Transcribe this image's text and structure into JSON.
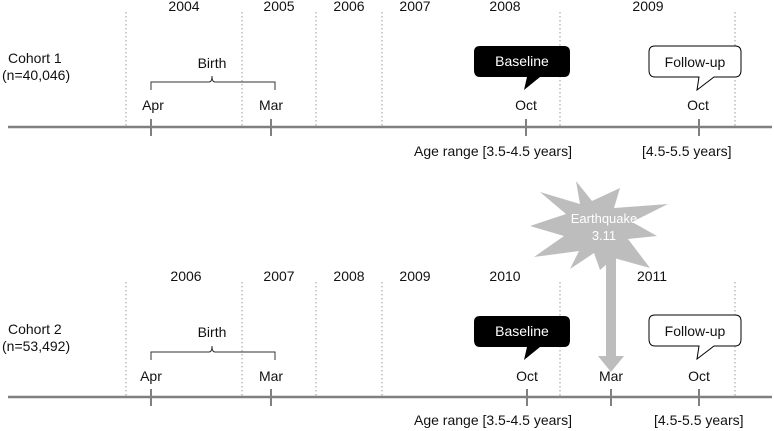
{
  "cohort1": {
    "name": "Cohort 1",
    "n": "(n=40,046)",
    "years": [
      "2004",
      "2005",
      "2006",
      "2007",
      "2008",
      "2009"
    ],
    "birth_label": "Birth",
    "birth_start": "Apr",
    "birth_end": "Mar",
    "baseline_label": "Baseline",
    "baseline_month": "Oct",
    "followup_label": "Follow-up",
    "followup_month": "Oct",
    "age_range_baseline": "Age range [3.5-4.5 years]",
    "age_range_followup": "[4.5-5.5 years]"
  },
  "cohort2": {
    "name": "Cohort 2",
    "n": "(n=53,492)",
    "years": [
      "2006",
      "2007",
      "2008",
      "2009",
      "2010",
      "2011"
    ],
    "birth_label": "Birth",
    "birth_start": "Apr",
    "birth_end": "Mar",
    "baseline_label": "Baseline",
    "baseline_month": "Oct",
    "event_month": "Mar",
    "followup_label": "Follow-up",
    "followup_month": "Oct",
    "age_range_baseline": "Age range [3.5-4.5 years]",
    "age_range_followup": "[4.5-5.5 years]"
  },
  "earthquake": {
    "line1": "Earthquake",
    "line2": "3.11"
  },
  "colors": {
    "axis": "#808080",
    "divider": "#9a9a9a",
    "callout_dark": "#000000",
    "earthquake": "#bdbdbd"
  }
}
